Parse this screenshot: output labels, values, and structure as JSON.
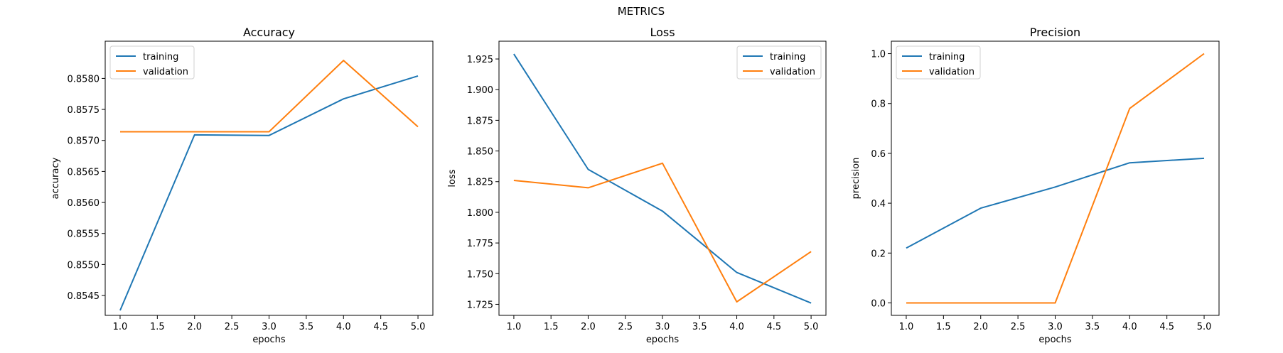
{
  "figure": {
    "title": "METRICS"
  },
  "colors": {
    "training": "#1f77b4",
    "validation": "#ff7f0e",
    "axis": "#000000"
  },
  "chart_data": [
    {
      "type": "line",
      "title": "Accuracy",
      "xlabel": "epochs",
      "ylabel": "accuracy",
      "x": [
        1,
        2,
        3,
        4,
        5
      ],
      "xlim": [
        0.8,
        5.2
      ],
      "ylim": [
        0.85418,
        0.8586
      ],
      "xticks": [
        "1.0",
        "1.5",
        "2.0",
        "2.5",
        "3.0",
        "3.5",
        "4.0",
        "4.5",
        "5.0"
      ],
      "yticks": [
        "0.8545",
        "0.8550",
        "0.8555",
        "0.8560",
        "0.8565",
        "0.8570",
        "0.8575",
        "0.8580"
      ],
      "legend": "top-left",
      "grid": false,
      "series": [
        {
          "name": "training",
          "values": [
            0.85426,
            0.85709,
            0.85708,
            0.85767,
            0.85804
          ]
        },
        {
          "name": "validation",
          "values": [
            0.85714,
            0.85714,
            0.85714,
            0.85829,
            0.85722
          ]
        }
      ]
    },
    {
      "type": "line",
      "title": "Loss",
      "xlabel": "epochs",
      "ylabel": "loss",
      "x": [
        1,
        2,
        3,
        4,
        5
      ],
      "xlim": [
        0.8,
        5.2
      ],
      "ylim": [
        1.716,
        1.9395
      ],
      "xticks": [
        "1.0",
        "1.5",
        "2.0",
        "2.5",
        "3.0",
        "3.5",
        "4.0",
        "4.5",
        "5.0"
      ],
      "yticks": [
        "1.725",
        "1.750",
        "1.775",
        "1.800",
        "1.825",
        "1.850",
        "1.875",
        "1.900",
        "1.925"
      ],
      "legend": "top-right",
      "grid": false,
      "series": [
        {
          "name": "training",
          "values": [
            1.929,
            1.835,
            1.801,
            1.751,
            1.726
          ]
        },
        {
          "name": "validation",
          "values": [
            1.826,
            1.82,
            1.84,
            1.727,
            1.768
          ]
        }
      ]
    },
    {
      "type": "line",
      "title": "Precision",
      "xlabel": "epochs",
      "ylabel": "precision",
      "x": [
        1,
        2,
        3,
        4,
        5
      ],
      "xlim": [
        0.8,
        5.2
      ],
      "ylim": [
        -0.05,
        1.05
      ],
      "xticks": [
        "1.0",
        "1.5",
        "2.0",
        "2.5",
        "3.0",
        "3.5",
        "4.0",
        "4.5",
        "5.0"
      ],
      "yticks": [
        "0.0",
        "0.2",
        "0.4",
        "0.6",
        "0.8",
        "1.0"
      ],
      "legend": "top-left",
      "grid": false,
      "series": [
        {
          "name": "training",
          "values": [
            0.22,
            0.38,
            0.465,
            0.562,
            0.58
          ]
        },
        {
          "name": "validation",
          "values": [
            0.0,
            0.0,
            0.0,
            0.78,
            1.0
          ]
        }
      ]
    }
  ]
}
